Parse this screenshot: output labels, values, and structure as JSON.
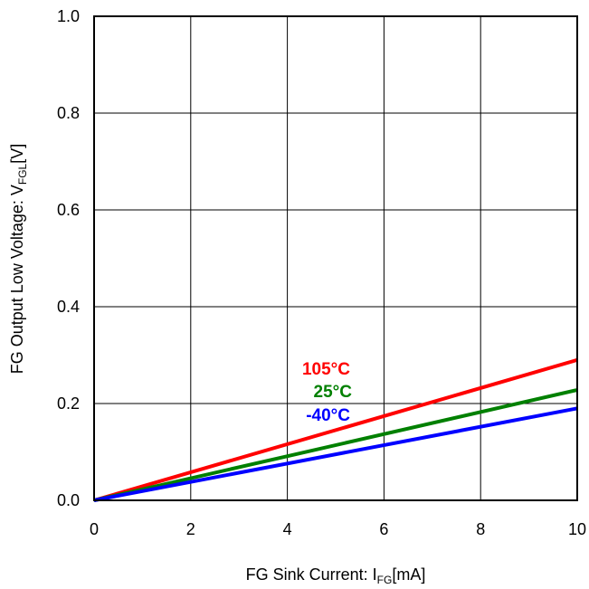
{
  "chart_data": {
    "type": "line",
    "xlabel": {
      "main": "FG Sink Current: I",
      "sub": "FG",
      "unit": "[mA]"
    },
    "ylabel": {
      "main": "FG Output Low Voltage: V",
      "sub": "FGL",
      "unit": "[V]"
    },
    "xlim": [
      0,
      10
    ],
    "ylim": [
      0,
      1.0
    ],
    "x_ticks": [
      "0",
      "2",
      "4",
      "6",
      "8",
      "10"
    ],
    "y_ticks": [
      "0.0",
      "0.2",
      "0.4",
      "0.6",
      "0.8",
      "1.0"
    ],
    "grid": true,
    "legend": "inline labels near lines",
    "series": [
      {
        "name": "105°C",
        "color": "#ff0000",
        "x": [
          0,
          10
        ],
        "y": [
          0,
          0.29
        ]
      },
      {
        "name": "25°C",
        "color": "#008000",
        "x": [
          0,
          10
        ],
        "y": [
          0,
          0.228
        ]
      },
      {
        "name": "-40°C",
        "color": "#0000ff",
        "x": [
          0,
          10
        ],
        "y": [
          0,
          0.19
        ]
      }
    ]
  }
}
